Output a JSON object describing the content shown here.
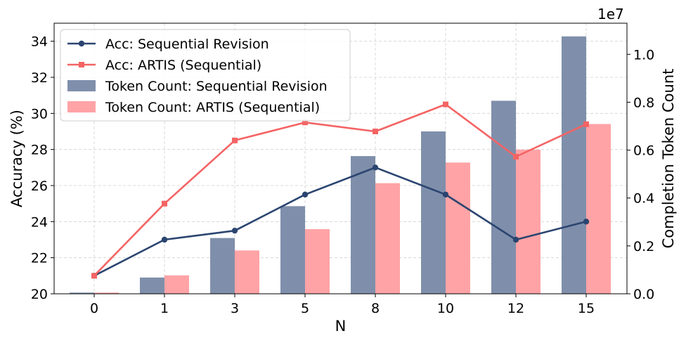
{
  "chart_data": {
    "type": "bar+line",
    "categories": [
      "0",
      "1",
      "3",
      "5",
      "8",
      "10",
      "12",
      "15"
    ],
    "xlabel": "N",
    "ylabel_left": "Accuracy (%)",
    "ylabel_right": "Completion Token Count",
    "right_axis_exponent": "1e7",
    "ylim_left": [
      20,
      35
    ],
    "yticks_left": [
      "20",
      "22",
      "24",
      "26",
      "28",
      "30",
      "32",
      "34"
    ],
    "ylim_right": [
      0,
      1.13
    ],
    "yticks_right": [
      "0.0",
      "0.2",
      "0.4",
      "0.6",
      "0.8",
      "1.0"
    ],
    "grid": true,
    "legend_position": "top-left",
    "bars": [
      {
        "name": "Token Count: Sequential Revision",
        "color": "#7f8fab",
        "values": [
          0.005,
          0.068,
          0.233,
          0.366,
          0.575,
          0.678,
          0.806,
          1.075
        ]
      },
      {
        "name": "Token Count: ARTIS (Sequential)",
        "color": "#ffa3a6",
        "values": [
          0.005,
          0.077,
          0.181,
          0.27,
          0.462,
          0.548,
          0.602,
          0.709
        ]
      }
    ],
    "lines": [
      {
        "name": "Acc: Sequential Revision",
        "color": "#2b4570",
        "marker": "circle",
        "values": [
          21.0,
          23.0,
          23.5,
          25.5,
          27.0,
          25.5,
          23.0,
          24.0
        ]
      },
      {
        "name": "Acc: ARTIS (Sequential)",
        "color": "#f46464",
        "marker": "square",
        "values": [
          21.0,
          25.0,
          28.5,
          29.5,
          29.0,
          30.5,
          27.6,
          29.4
        ]
      }
    ]
  }
}
